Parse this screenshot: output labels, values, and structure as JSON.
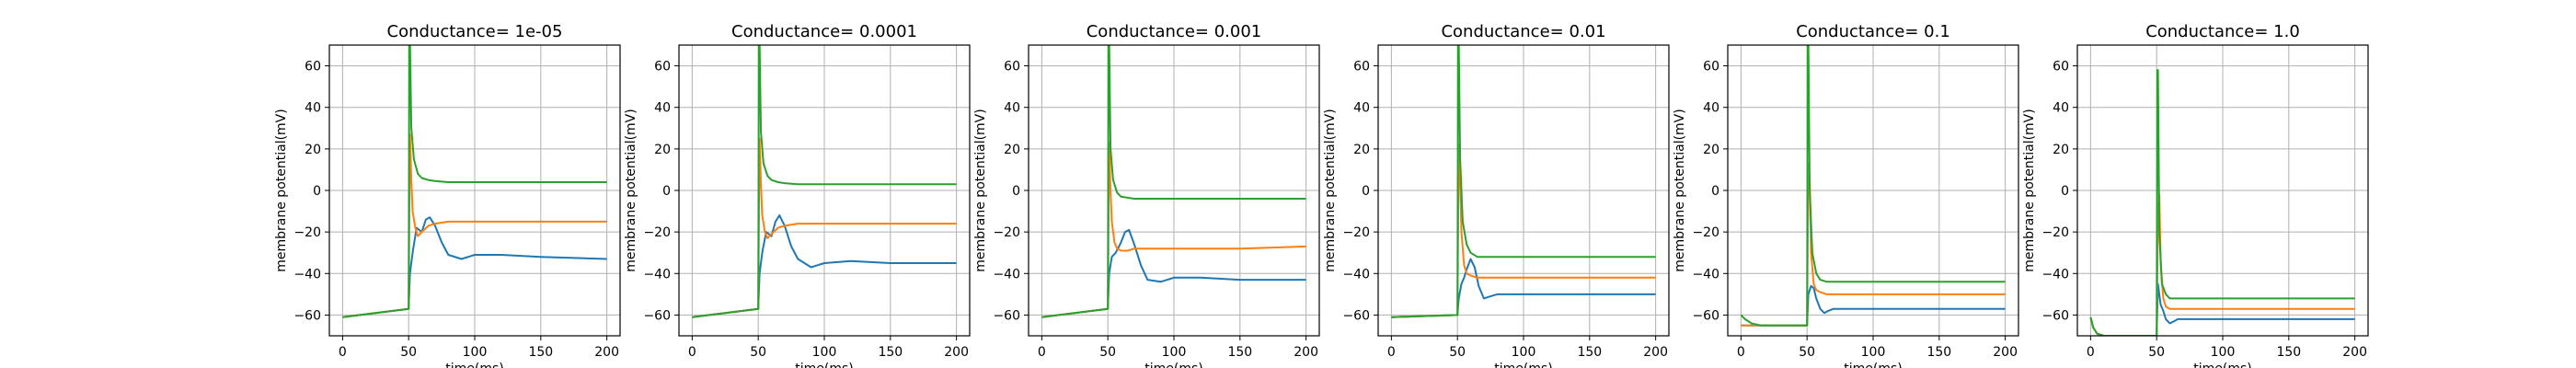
{
  "chart_data": [
    {
      "type": "line",
      "title": "Conductance= 1e-05",
      "xlabel": "time(ms)",
      "ylabel": "membrane potential(mV)",
      "xlim": [
        -10,
        210
      ],
      "ylim": [
        -70,
        70
      ],
      "xticks": [
        0,
        50,
        100,
        150,
        200
      ],
      "yticks": [
        -60,
        -40,
        -20,
        0,
        20,
        40,
        60
      ],
      "grid": true,
      "series": [
        {
          "color": "#1f77b4",
          "x": [
            0,
            50,
            51,
            53,
            56,
            60,
            63,
            66,
            70,
            75,
            80,
            90,
            100,
            120,
            150,
            200
          ],
          "y": [
            -61,
            -57,
            -40,
            -30,
            -18,
            -20,
            -14,
            -13,
            -17,
            -25,
            -31,
            -33,
            -31,
            -31,
            -32,
            -33
          ]
        },
        {
          "color": "#ff7f0e",
          "x": [
            0,
            50,
            51,
            52,
            53,
            55,
            57,
            60,
            65,
            70,
            80,
            100,
            150,
            200
          ],
          "y": [
            -61,
            -57,
            27,
            5,
            -10,
            -18,
            -22,
            -20,
            -17,
            -16,
            -15,
            -15,
            -15,
            -15
          ]
        },
        {
          "color": "#2ca02c",
          "x": [
            0,
            50,
            50.5,
            51,
            52,
            54,
            57,
            60,
            65,
            70,
            80,
            100,
            150,
            200
          ],
          "y": [
            -61,
            -57,
            72,
            72,
            30,
            15,
            8,
            6,
            5,
            4.5,
            4,
            4,
            4,
            4
          ]
        }
      ]
    },
    {
      "type": "line",
      "title": "Conductance= 0.0001",
      "xlabel": "time(ms)",
      "ylabel": "membrane potential(mV)",
      "xlim": [
        -10,
        210
      ],
      "ylim": [
        -70,
        70
      ],
      "xticks": [
        0,
        50,
        100,
        150,
        200
      ],
      "yticks": [
        -60,
        -40,
        -20,
        0,
        20,
        40,
        60
      ],
      "grid": true,
      "series": [
        {
          "color": "#1f77b4",
          "x": [
            0,
            50,
            51,
            53,
            56,
            60,
            63,
            66,
            70,
            75,
            80,
            90,
            100,
            120,
            150,
            200
          ],
          "y": [
            -61,
            -57,
            -40,
            -30,
            -20,
            -22,
            -15,
            -12,
            -17,
            -27,
            -33,
            -37,
            -35,
            -34,
            -35,
            -35
          ]
        },
        {
          "color": "#ff7f0e",
          "x": [
            0,
            50,
            51,
            52,
            53,
            55,
            57,
            60,
            65,
            70,
            80,
            100,
            150,
            200
          ],
          "y": [
            -61,
            -57,
            25,
            3,
            -12,
            -20,
            -23,
            -21,
            -18,
            -17,
            -16,
            -16,
            -16,
            -16
          ]
        },
        {
          "color": "#2ca02c",
          "x": [
            0,
            50,
            50.5,
            51,
            52,
            54,
            57,
            60,
            65,
            70,
            80,
            100,
            150,
            200
          ],
          "y": [
            -61,
            -57,
            72,
            72,
            28,
            13,
            7,
            5,
            4,
            3.5,
            3,
            3,
            3,
            3
          ]
        }
      ]
    },
    {
      "type": "line",
      "title": "Conductance= 0.001",
      "xlabel": "time(ms)",
      "ylabel": "membrane potential(mV)",
      "xlim": [
        -10,
        210
      ],
      "ylim": [
        -70,
        70
      ],
      "xticks": [
        0,
        50,
        100,
        150,
        200
      ],
      "yticks": [
        -60,
        -40,
        -20,
        0,
        20,
        40,
        60
      ],
      "grid": true,
      "series": [
        {
          "color": "#1f77b4",
          "x": [
            0,
            50,
            51,
            53,
            56,
            60,
            63,
            66,
            70,
            75,
            80,
            90,
            100,
            120,
            150,
            200
          ],
          "y": [
            -61,
            -57,
            -40,
            -32,
            -30,
            -25,
            -20,
            -19,
            -26,
            -36,
            -43,
            -44,
            -42,
            -42,
            -43,
            -43
          ]
        },
        {
          "color": "#ff7f0e",
          "x": [
            0,
            50,
            51,
            52,
            53,
            55,
            57,
            60,
            65,
            70,
            80,
            100,
            150,
            200
          ],
          "y": [
            -61,
            -57,
            23,
            0,
            -15,
            -25,
            -28,
            -29,
            -29,
            -28,
            -28,
            -28,
            -28,
            -27
          ]
        },
        {
          "color": "#2ca02c",
          "x": [
            0,
            50,
            50.5,
            51,
            52,
            54,
            57,
            60,
            65,
            70,
            80,
            100,
            150,
            200
          ],
          "y": [
            -61,
            -57,
            72,
            72,
            20,
            5,
            -1,
            -3,
            -3.5,
            -4,
            -4,
            -4,
            -4,
            -4
          ]
        }
      ]
    },
    {
      "type": "line",
      "title": "Conductance= 0.01",
      "xlabel": "time(ms)",
      "ylabel": "membrane potential(mV)",
      "xlim": [
        -10,
        210
      ],
      "ylim": [
        -70,
        70
      ],
      "xticks": [
        0,
        50,
        100,
        150,
        200
      ],
      "yticks": [
        -60,
        -40,
        -20,
        0,
        20,
        40,
        60
      ],
      "grid": true,
      "series": [
        {
          "color": "#1f77b4",
          "x": [
            0,
            50,
            51,
            53,
            55,
            57,
            60,
            63,
            66,
            70,
            75,
            80,
            90,
            100,
            150,
            200
          ],
          "y": [
            -61,
            -60,
            -52,
            -45,
            -42,
            -38,
            -33,
            -37,
            -46,
            -52,
            -51,
            -50,
            -50,
            -50,
            -50,
            -50
          ]
        },
        {
          "color": "#ff7f0e",
          "x": [
            0,
            50,
            51,
            52,
            53,
            55,
            57,
            60,
            65,
            70,
            80,
            100,
            150,
            200
          ],
          "y": [
            -61,
            -60,
            22,
            5,
            -20,
            -36,
            -40,
            -41,
            -42,
            -42,
            -42,
            -42,
            -42,
            -42
          ]
        },
        {
          "color": "#2ca02c",
          "x": [
            0,
            50,
            50.5,
            51,
            52,
            54,
            57,
            60,
            65,
            70,
            80,
            100,
            150,
            200
          ],
          "y": [
            -61,
            -60,
            72,
            72,
            15,
            -15,
            -26,
            -30,
            -32,
            -32,
            -32,
            -32,
            -32,
            -32
          ]
        }
      ]
    },
    {
      "type": "line",
      "title": "Conductance= 0.1",
      "xlabel": "time(ms)",
      "ylabel": "membrane potential(mV)",
      "xlim": [
        -10,
        210
      ],
      "ylim": [
        -70,
        70
      ],
      "xticks": [
        0,
        50,
        100,
        150,
        200
      ],
      "yticks": [
        -60,
        -40,
        -20,
        0,
        20,
        40,
        60
      ],
      "grid": true,
      "series": [
        {
          "color": "#1f77b4",
          "x": [
            0,
            50,
            51,
            53,
            55,
            57,
            60,
            63,
            66,
            70,
            80,
            100,
            150,
            200
          ],
          "y": [
            -65,
            -65,
            -50,
            -46,
            -47,
            -52,
            -57,
            -59,
            -58,
            -57,
            -57,
            -57,
            -57,
            -57
          ]
        },
        {
          "color": "#ff7f0e",
          "x": [
            0,
            50,
            51,
            52,
            53,
            55,
            57,
            60,
            65,
            70,
            80,
            100,
            150,
            200
          ],
          "y": [
            -65,
            -65,
            13,
            5,
            -30,
            -45,
            -48,
            -49,
            -50,
            -50,
            -50,
            -50,
            -50,
            -50
          ]
        },
        {
          "color": "#2ca02c",
          "x": [
            0,
            3,
            8,
            15,
            50,
            50.5,
            51,
            52,
            54,
            57,
            60,
            65,
            70,
            80,
            100,
            150,
            200
          ],
          "y": [
            -60,
            -62,
            -64,
            -65,
            -65,
            72,
            72,
            0,
            -30,
            -40,
            -43,
            -44,
            -44,
            -44,
            -44,
            -44,
            -44
          ]
        }
      ]
    },
    {
      "type": "line",
      "title": "Conductance= 1.0",
      "xlabel": "time(ms)",
      "ylabel": "membrane potential(mV)",
      "xlim": [
        -10,
        210
      ],
      "ylim": [
        -70,
        70
      ],
      "xticks": [
        0,
        50,
        100,
        150,
        200
      ],
      "yticks": [
        -60,
        -40,
        -20,
        0,
        20,
        40,
        60
      ],
      "grid": true,
      "series": [
        {
          "color": "#1f77b4",
          "x": [
            0,
            2,
            5,
            10,
            50,
            51,
            53,
            55,
            57,
            60,
            63,
            66,
            70,
            80,
            100,
            150,
            200
          ],
          "y": [
            -61,
            -66,
            -69,
            -70,
            -70,
            -45,
            -55,
            -58,
            -62,
            -64,
            -63,
            -62,
            -62,
            -62,
            -62,
            -62,
            -62
          ]
        },
        {
          "color": "#ff7f0e",
          "x": [
            0,
            2,
            5,
            10,
            50,
            51,
            52,
            53,
            55,
            57,
            60,
            65,
            70,
            80,
            100,
            150,
            200
          ],
          "y": [
            -61,
            -66,
            -69,
            -70,
            -70,
            -15,
            -2,
            -35,
            -52,
            -56,
            -57,
            -57,
            -57,
            -57,
            -57,
            -57,
            -57
          ]
        },
        {
          "color": "#2ca02c",
          "x": [
            0,
            2,
            5,
            10,
            50,
            50.5,
            51,
            52,
            54,
            57,
            60,
            65,
            70,
            80,
            100,
            150,
            200
          ],
          "y": [
            -61,
            -66,
            -69,
            -70,
            -70,
            58,
            58,
            -20,
            -45,
            -50,
            -52,
            -52,
            -52,
            -52,
            -52,
            -52,
            -52
          ]
        }
      ]
    }
  ]
}
